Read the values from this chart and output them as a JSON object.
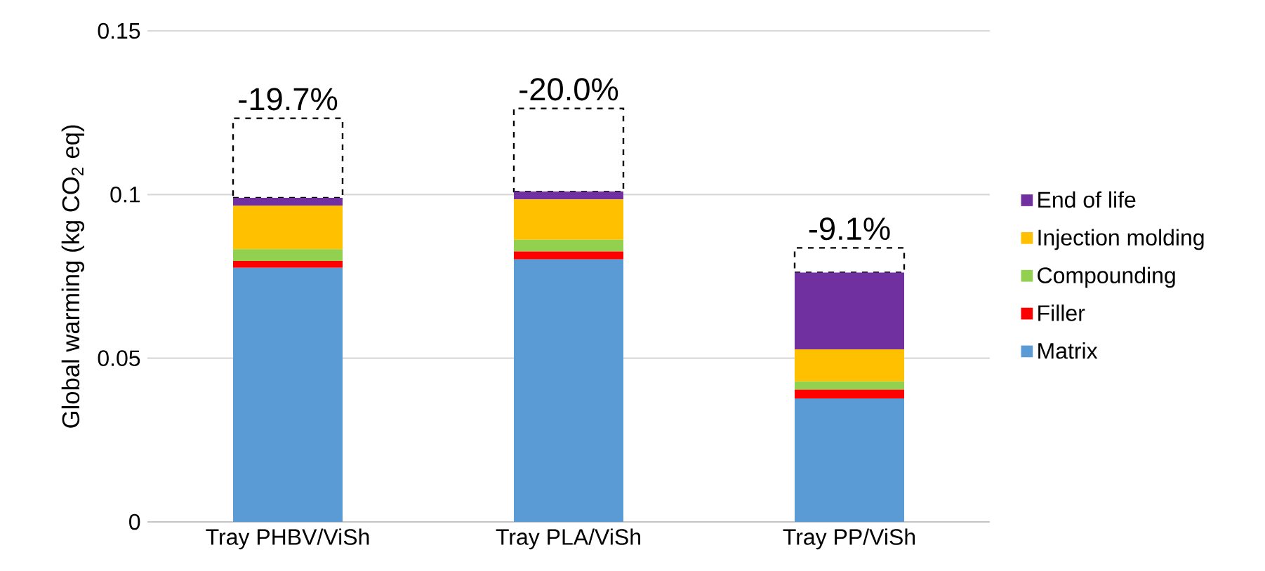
{
  "chart_data": {
    "type": "bar",
    "stacked": true,
    "ylabel": "Global warming (kg CO$_{2}$ eq)",
    "categories": [
      "Tray PHBV/ViSh",
      "Tray PLA/ViSh",
      "Tray PP/ViSh"
    ],
    "series": [
      {
        "name": "Matrix",
        "color": "#5b9bd5",
        "values": [
          0.0776,
          0.0802,
          0.0377
        ]
      },
      {
        "name": "Filler",
        "color": "#ff0000",
        "values": [
          0.0021,
          0.0024,
          0.0027
        ]
      },
      {
        "name": "Compounding",
        "color": "#92d050",
        "values": [
          0.0036,
          0.0036,
          0.0025
        ]
      },
      {
        "name": "Injection molding",
        "color": "#ffc000",
        "values": [
          0.0133,
          0.0123,
          0.0098
        ]
      },
      {
        "name": "End of life",
        "color": "#7030a0",
        "values": [
          0.0024,
          0.0024,
          0.0235
        ]
      },
      {
        "color": "#000000",
        "line_style": "dashed",
        "values": [
          0.0243,
          0.0254,
          0.0075
        ]
      }
    ],
    "annotations": [
      {
        "text": "-19.7%",
        "x": "Tray PHBV/ViSh",
        "y": 0.1233
      },
      {
        "text": "-20.0%",
        "x": "Tray PLA/ViSh",
        "y": 0.1263
      },
      {
        "text": "-9.1%",
        "x": "Tray PP/ViSh",
        "y": 0.0837
      }
    ],
    "ylim": [
      0,
      0.15
    ],
    "yticks": [
      0,
      0.05,
      0.1,
      0.15
    ],
    "grid": "y",
    "legend": "right"
  }
}
